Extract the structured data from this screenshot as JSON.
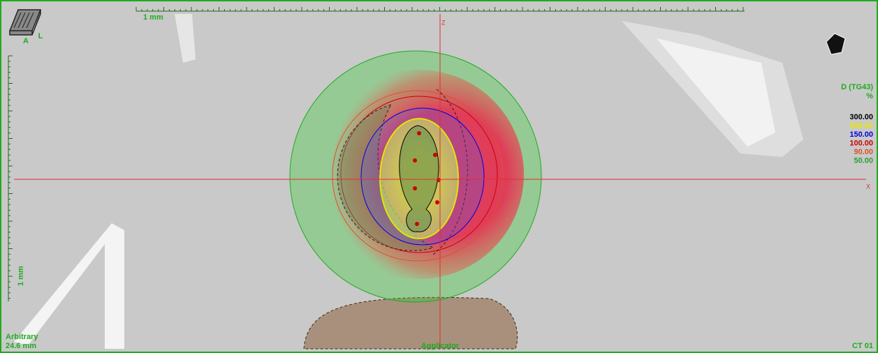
{
  "view": {
    "orientation_labels": {
      "anterior": "A",
      "left": "L"
    },
    "top_scale": "1 mm",
    "side_scale": "1 mm",
    "axis_labels": {
      "z": "Z",
      "x": "X"
    },
    "dose_legend": {
      "title": "D (TG43)",
      "unit": "%",
      "levels": [
        {
          "label": "300.00",
          "color": "#000000"
        },
        {
          "label": "200.00",
          "color": "#e5e500"
        },
        {
          "label": "150.00",
          "color": "#0000dd"
        },
        {
          "label": "100.00",
          "color": "#cc0000"
        },
        {
          "label": "90.00",
          "color": "#e0502a"
        },
        {
          "label": "50.00",
          "color": "#2aa02a"
        }
      ]
    },
    "bottom_left": {
      "mode": "Arbitrary",
      "depth": "24.6 mm"
    },
    "structure_label": "Applicator",
    "series_label": "CT 01"
  }
}
